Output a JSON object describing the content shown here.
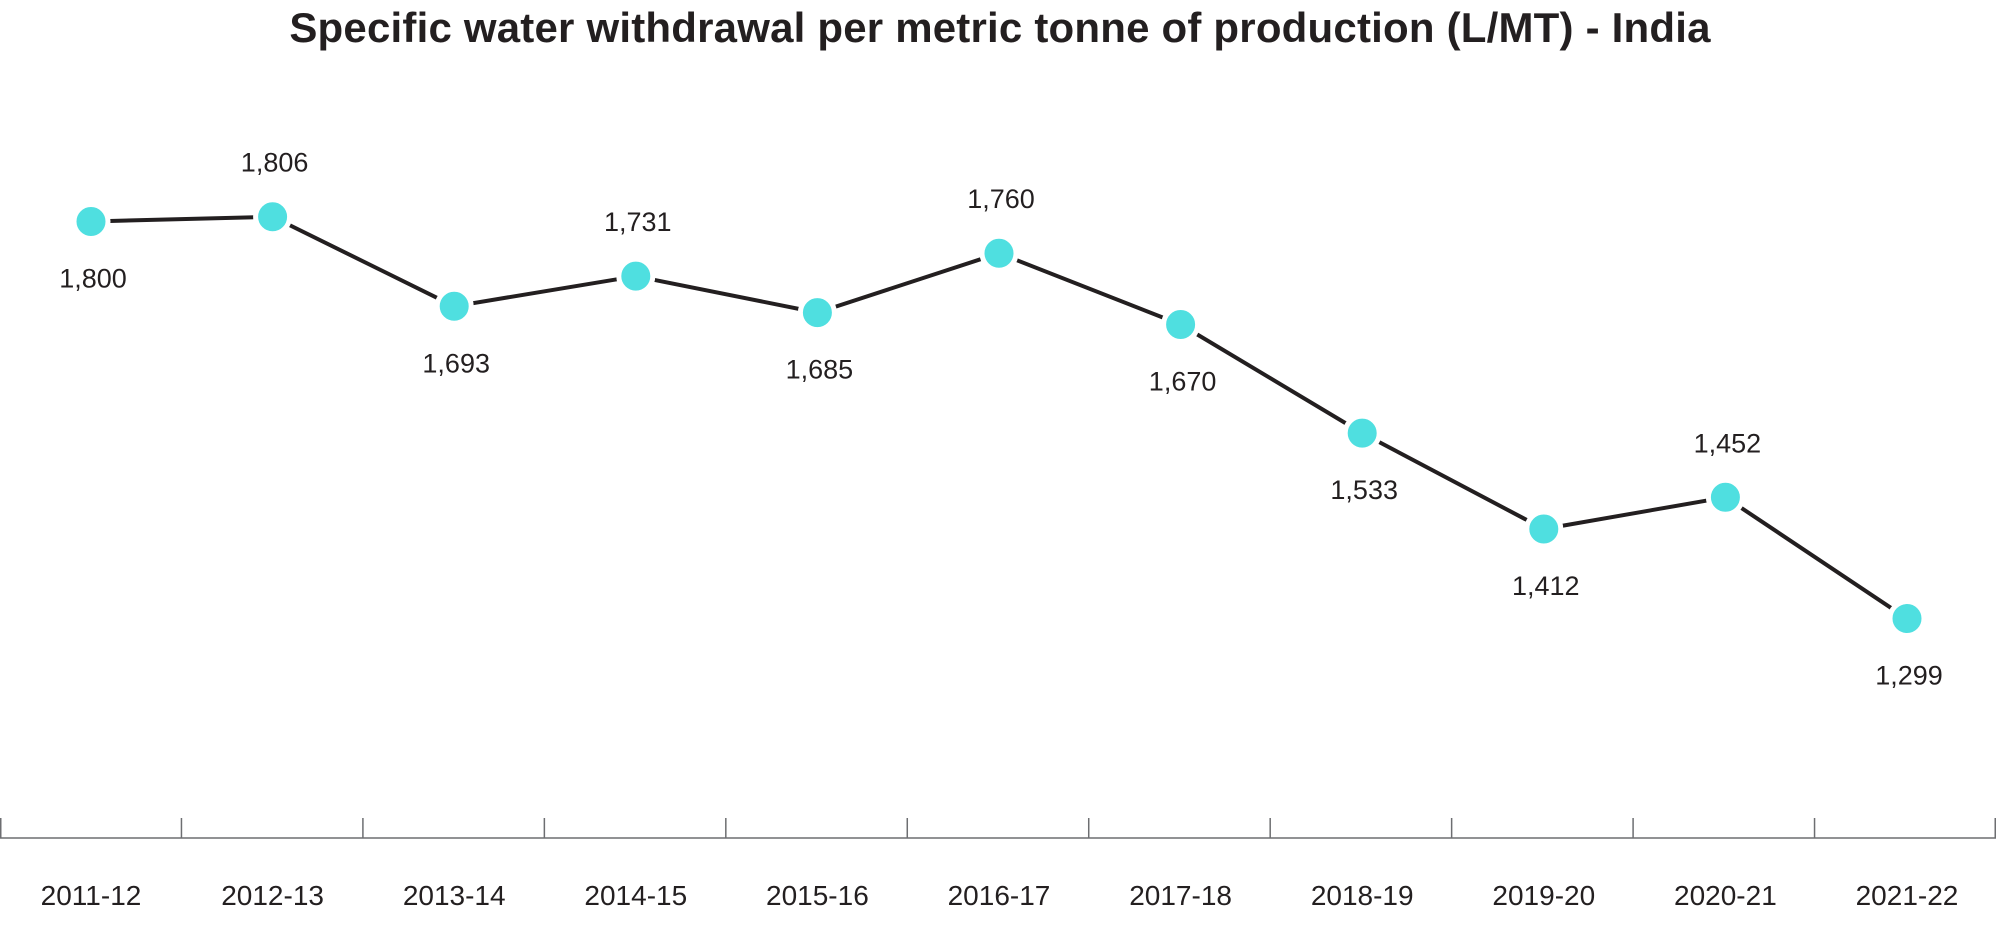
{
  "chart_data": {
    "type": "line",
    "title": "Specific water withdrawal per metric tonne of production (L/MT) - India",
    "xlabel": "",
    "ylabel": "",
    "categories": [
      "2011-12",
      "2012-13",
      "2013-14",
      "2014-15",
      "2015-16",
      "2016-17",
      "2017-18",
      "2018-19",
      "2019-20",
      "2020-21",
      "2021-22"
    ],
    "series": [
      {
        "values": [
          1800,
          1806,
          1693,
          1731,
          1685,
          1760,
          1670,
          1533,
          1412,
          1452,
          1299
        ],
        "value_labels": [
          "1,800",
          "1,806",
          "1,693",
          "1,731",
          "1,685",
          "1,760",
          "1,670",
          "1,533",
          "1,412",
          "1,452",
          "1,299"
        ]
      }
    ],
    "grid": false,
    "legend": "none",
    "y_axis_visible": false,
    "colors": {
      "marker": "#4fdfe0",
      "line": "#231f20",
      "axis": "#6d6e71",
      "text": "#231f20"
    }
  }
}
